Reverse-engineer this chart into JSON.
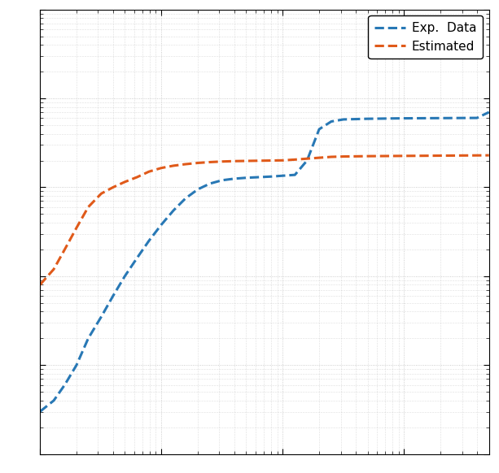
{
  "legend_labels": [
    "Exp.  Data",
    "Estimated"
  ],
  "line_colors": [
    "#2878b5",
    "#e05a1a"
  ],
  "line_style": "--",
  "line_width": 2.2,
  "xlim": [
    0.1,
    500
  ],
  "ylim": [
    1e-09,
    0.0001
  ],
  "background_color": "#ffffff",
  "grid_color": "#c0c0c0",
  "exp_data_x": [
    0.1,
    0.13,
    0.16,
    0.2,
    0.25,
    0.32,
    0.4,
    0.5,
    0.63,
    0.79,
    1.0,
    1.26,
    1.58,
    2.0,
    2.51,
    3.16,
    3.98,
    5.01,
    6.31,
    7.94,
    10.0,
    12.59,
    15.85,
    19.95,
    25.12,
    31.62,
    39.81,
    50.12,
    63.1,
    79.43,
    100.0,
    125.89,
    158.49,
    199.53,
    251.19,
    316.23,
    398.11,
    500.0
  ],
  "exp_data_y": [
    3e-09,
    4e-09,
    6e-09,
    1e-08,
    2e-08,
    3.5e-08,
    6e-08,
    1e-07,
    1.6e-07,
    2.5e-07,
    3.8e-07,
    5.5e-07,
    7.5e-07,
    9.5e-07,
    1.1e-06,
    1.2e-06,
    1.25e-06,
    1.28e-06,
    1.3e-06,
    1.32e-06,
    1.35e-06,
    1.38e-06,
    2e-06,
    4.5e-06,
    5.5e-06,
    5.8e-06,
    5.85e-06,
    5.9e-06,
    5.92e-06,
    5.95e-06,
    5.97e-06,
    5.98e-06,
    5.99e-06,
    6e-06,
    6.01e-06,
    6.02e-06,
    6.03e-06,
    7e-06
  ],
  "est_data_x": [
    0.1,
    0.13,
    0.16,
    0.2,
    0.25,
    0.32,
    0.4,
    0.5,
    0.63,
    0.79,
    1.0,
    1.26,
    1.58,
    2.0,
    2.51,
    3.16,
    3.98,
    5.01,
    6.31,
    7.94,
    10.0,
    12.59,
    15.85,
    19.95,
    25.12,
    31.62,
    39.81,
    50.12,
    63.1,
    79.43,
    100.0,
    125.89,
    158.49,
    199.53,
    251.19,
    316.23,
    398.11,
    500.0
  ],
  "est_data_y": [
    8e-08,
    1.2e-07,
    2e-07,
    3.5e-07,
    6e-07,
    8.5e-07,
    1e-06,
    1.15e-06,
    1.3e-06,
    1.5e-06,
    1.65e-06,
    1.75e-06,
    1.82e-06,
    1.88e-06,
    1.92e-06,
    1.95e-06,
    1.97e-06,
    1.98e-06,
    1.99e-06,
    2e-06,
    2.01e-06,
    2.05e-06,
    2.1e-06,
    2.15e-06,
    2.2e-06,
    2.22e-06,
    2.23e-06,
    2.24e-06,
    2.245e-06,
    2.25e-06,
    2.255e-06,
    2.26e-06,
    2.265e-06,
    2.27e-06,
    2.275e-06,
    2.28e-06,
    2.285e-06,
    2.29e-06
  ]
}
